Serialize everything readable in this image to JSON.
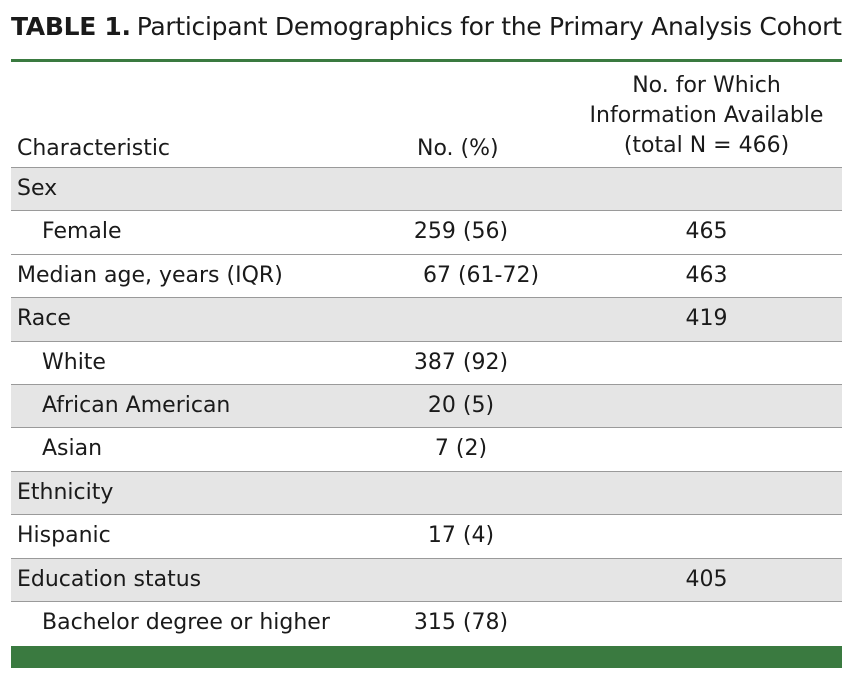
{
  "caption": {
    "label": "TABLE 1.",
    "title": "Participant Demographics for the Primary Analysis Cohort"
  },
  "columns": {
    "characteristic": "Characteristic",
    "no_pct": "No. (%)",
    "info_line1": "No. for Which",
    "info_line2": "Information Available",
    "info_line3": "(total N = 466)"
  },
  "rows": [
    {
      "label": "Sex",
      "value": "",
      "available": ""
    },
    {
      "label": "Female",
      "value": "259 (56)",
      "available": "465"
    },
    {
      "label": "Median age, years (IQR)",
      "value": "67 (61-72)",
      "available": "463"
    },
    {
      "label": "Race",
      "value": "",
      "available": "419"
    },
    {
      "label": "White",
      "value": "387 (92)",
      "available": ""
    },
    {
      "label": "African American",
      "value": "20 (5)",
      "available": ""
    },
    {
      "label": "Asian",
      "value": "7 (2)",
      "available": ""
    },
    {
      "label": "Ethnicity",
      "value": "",
      "available": ""
    },
    {
      "label": "Hispanic",
      "value": "17 (4)",
      "available": ""
    },
    {
      "label": "Education status",
      "value": "",
      "available": "405"
    },
    {
      "label": "Bachelor degree or higher",
      "value": "315 (78)",
      "available": ""
    }
  ]
}
